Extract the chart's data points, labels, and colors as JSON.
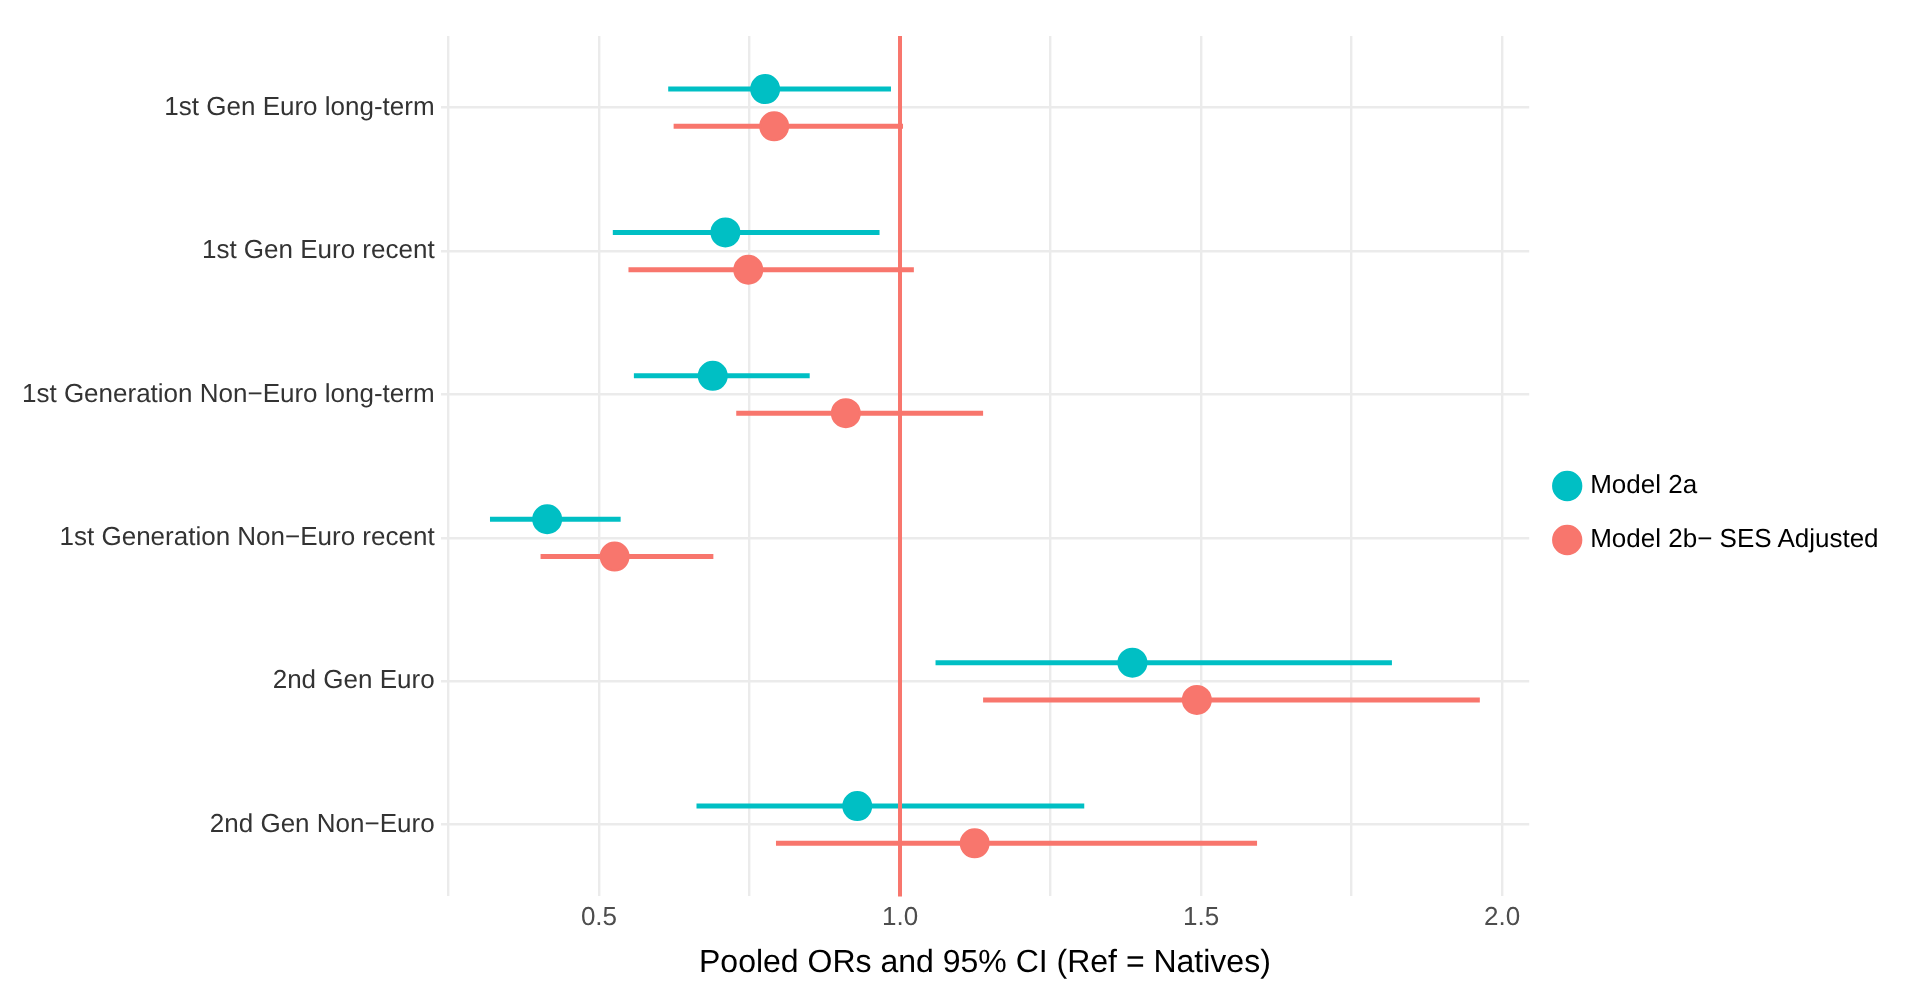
{
  "chart_data": {
    "type": "scatter",
    "orientation": "horizontal",
    "xlabel": "Pooled ORs and 95% CI (Ref = Natives)",
    "categories": [
      "1st Gen Euro long-term",
      "1st Gen Euro recent",
      "1st Generation Non−Euro long-term",
      "1st Generation Non−Euro recent",
      "2nd Gen Euro",
      "2nd Gen Non−Euro"
    ],
    "series": [
      {
        "name": "Model 2a",
        "color": "#00bfc4",
        "values": [
          0.776,
          0.71,
          0.689,
          0.414,
          1.386,
          0.929
        ],
        "errors": [
          [
            0.615,
            0.985
          ],
          [
            0.523,
            0.966
          ],
          [
            0.558,
            0.85
          ],
          [
            0.319,
            0.536
          ],
          [
            1.059,
            1.817
          ],
          [
            0.662,
            1.306
          ]
        ]
      },
      {
        "name": "Model 2b− SES Adjusted",
        "color": "#f8766d",
        "values": [
          0.791,
          0.748,
          0.91,
          0.526,
          1.493,
          1.124
        ],
        "errors": [
          [
            0.624,
            1.005
          ],
          [
            0.549,
            1.023
          ],
          [
            0.728,
            1.138
          ],
          [
            0.403,
            0.69
          ],
          [
            1.138,
            1.963
          ],
          [
            0.794,
            1.593
          ]
        ]
      }
    ],
    "xlim": [
      0.237,
      2.045
    ],
    "xticks": [
      {
        "value": 0.25,
        "label": null
      },
      0.5,
      {
        "value": 0.75,
        "label": null
      },
      {
        "value": 1,
        "label": "1.0"
      },
      {
        "value": 1.25,
        "label": null
      },
      1.5,
      {
        "value": 1.75,
        "label": null
      },
      {
        "value": 2,
        "label": "2.0"
      }
    ],
    "ref_lines": [
      {
        "axis": "x",
        "value": 1,
        "color": "#f8766d"
      }
    ],
    "grid": true,
    "legend": "right",
    "marker": "circle"
  }
}
